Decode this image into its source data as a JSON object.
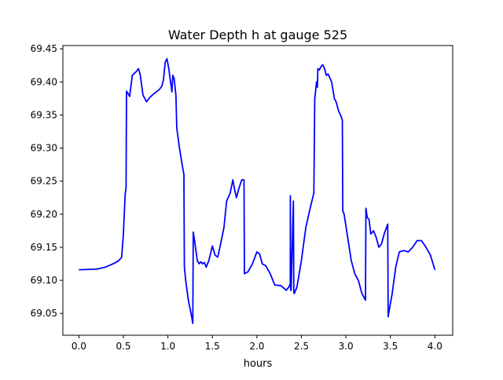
{
  "chart_data": {
    "type": "line",
    "title": "Water Depth h at gauge 525",
    "xlabel": "hours",
    "ylabel": "",
    "xlim": [
      -0.18,
      4.2
    ],
    "ylim": [
      69.017,
      69.455
    ],
    "xticks": [
      "0.0",
      "0.5",
      "1.0",
      "1.5",
      "2.0",
      "2.5",
      "3.0",
      "3.5",
      "4.0"
    ],
    "yticks": [
      "69.05",
      "69.10",
      "69.15",
      "69.20",
      "69.25",
      "69.30",
      "69.35",
      "69.40",
      "69.45"
    ],
    "grid": false,
    "legend": "none",
    "line_color": "#0000ff",
    "series": [
      {
        "x": [
          0.0,
          0.2,
          0.3,
          0.4,
          0.45,
          0.48,
          0.5,
          0.52,
          0.53,
          0.535,
          0.55,
          0.57,
          0.6,
          0.64,
          0.67,
          0.69,
          0.72,
          0.76,
          0.8,
          0.85,
          0.9,
          0.93,
          0.95,
          0.97,
          0.99,
          1.01,
          1.03,
          1.045,
          1.055,
          1.07,
          1.09,
          1.1,
          1.13,
          1.16,
          1.18,
          1.185,
          1.2,
          1.23,
          1.26,
          1.28,
          1.285,
          1.3,
          1.33,
          1.35,
          1.37,
          1.39,
          1.41,
          1.43,
          1.46,
          1.5,
          1.53,
          1.56,
          1.6,
          1.63,
          1.66,
          1.7,
          1.73,
          1.75,
          1.77,
          1.8,
          1.83,
          1.855,
          1.86,
          1.9,
          1.95,
          2.0,
          2.03,
          2.06,
          2.1,
          2.15,
          2.2,
          2.27,
          2.33,
          2.36,
          2.375,
          2.376,
          2.38,
          2.385,
          2.41,
          2.415,
          2.42,
          2.45,
          2.5,
          2.55,
          2.6,
          2.64,
          2.65,
          2.655,
          2.67,
          2.68,
          2.685,
          2.7,
          2.72,
          2.74,
          2.76,
          2.78,
          2.8,
          2.84,
          2.87,
          2.89,
          2.92,
          2.94,
          2.96,
          2.965,
          2.98,
          3.02,
          3.06,
          3.1,
          3.14,
          3.18,
          3.22,
          3.225,
          3.24,
          3.26,
          3.28,
          3.31,
          3.34,
          3.37,
          3.4,
          3.43,
          3.47,
          3.475,
          3.48,
          3.52,
          3.56,
          3.6,
          3.65,
          3.7,
          3.75,
          3.8,
          3.85,
          3.9,
          3.95,
          4.0
        ],
        "y": [
          69.116,
          69.117,
          69.12,
          69.126,
          69.13,
          69.135,
          69.17,
          69.23,
          69.24,
          69.386,
          69.383,
          69.378,
          69.41,
          69.415,
          69.42,
          69.41,
          69.38,
          69.37,
          69.377,
          69.383,
          69.388,
          69.393,
          69.403,
          69.43,
          69.435,
          69.42,
          69.4,
          69.385,
          69.41,
          69.405,
          69.38,
          69.33,
          69.3,
          69.275,
          69.26,
          69.12,
          69.1,
          69.07,
          69.05,
          69.035,
          69.173,
          69.16,
          69.13,
          69.125,
          69.128,
          69.125,
          69.127,
          69.12,
          69.13,
          69.152,
          69.138,
          69.135,
          69.16,
          69.18,
          69.22,
          69.232,
          69.252,
          69.237,
          69.225,
          69.24,
          69.252,
          69.252,
          69.11,
          69.113,
          69.125,
          69.143,
          69.14,
          69.125,
          69.122,
          69.11,
          69.093,
          69.092,
          69.085,
          69.09,
          69.095,
          69.228,
          69.085,
          69.085,
          69.22,
          69.082,
          69.08,
          69.09,
          69.13,
          69.18,
          69.21,
          69.232,
          69.375,
          69.38,
          69.4,
          69.392,
          69.42,
          69.418,
          69.423,
          69.426,
          69.42,
          69.41,
          69.412,
          69.4,
          69.375,
          69.37,
          69.355,
          69.35,
          69.342,
          69.205,
          69.2,
          69.165,
          69.13,
          69.11,
          69.1,
          69.08,
          69.07,
          69.209,
          69.195,
          69.192,
          69.17,
          69.175,
          69.165,
          69.15,
          69.155,
          69.17,
          69.185,
          69.045,
          69.05,
          69.08,
          69.12,
          69.143,
          69.145,
          69.143,
          69.15,
          69.16,
          69.16,
          69.15,
          69.138,
          69.116
        ]
      }
    ]
  }
}
